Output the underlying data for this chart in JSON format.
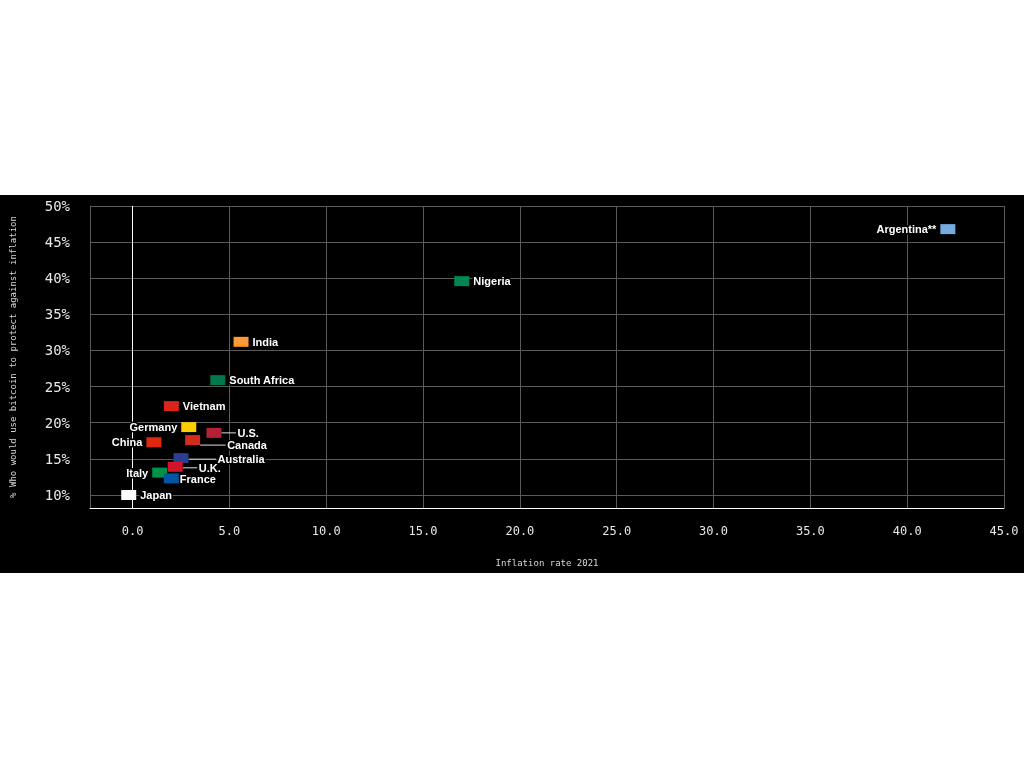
{
  "chart_data": {
    "type": "scatter",
    "xlabel": "Inflation rate 2021",
    "ylabel": "% Who would use bitcoin to protect against inflation",
    "xlim": [
      -2.2,
      45
    ],
    "ylim": [
      8.2,
      50
    ],
    "xticks": [
      {
        "value": 0,
        "label": "0.0"
      },
      {
        "value": 5,
        "label": "5.0"
      },
      {
        "value": 10,
        "label": "10.0"
      },
      {
        "value": 15,
        "label": "15.0"
      },
      {
        "value": 20,
        "label": "20.0"
      },
      {
        "value": 25,
        "label": "25.0"
      },
      {
        "value": 30,
        "label": "30.0"
      },
      {
        "value": 35,
        "label": "35.0"
      },
      {
        "value": 40,
        "label": "40.0"
      },
      {
        "value": 45,
        "label": "45.0"
      }
    ],
    "yticks": [
      {
        "value": 10,
        "label": "10%"
      },
      {
        "value": 15,
        "label": "15%"
      },
      {
        "value": 20,
        "label": "20%"
      },
      {
        "value": 25,
        "label": "25%"
      },
      {
        "value": 30,
        "label": "30%"
      },
      {
        "value": 35,
        "label": "35%"
      },
      {
        "value": 40,
        "label": "40%"
      },
      {
        "value": 45,
        "label": "45%"
      },
      {
        "value": 50,
        "label": "50%"
      }
    ],
    "grid": true,
    "marker": "square",
    "ref_lines": [
      {
        "axis": "x",
        "value": 0,
        "color": "#ffffff"
      }
    ],
    "series": [
      {
        "name": "Argentina**",
        "color": "#74acdf",
        "x": [
          42.1
        ],
        "values": [
          46.8
        ]
      },
      {
        "name": "Nigeria",
        "color": "#008751",
        "x": [
          17.0
        ],
        "values": [
          39.6
        ]
      },
      {
        "name": "India",
        "color": "#ff9933",
        "x": [
          5.6
        ],
        "values": [
          31.2
        ]
      },
      {
        "name": "South Africa",
        "color": "#007a4d",
        "x": [
          4.4
        ],
        "values": [
          25.9
        ]
      },
      {
        "name": "Vietnam",
        "color": "#da251d",
        "x": [
          2.0
        ],
        "values": [
          22.3
        ]
      },
      {
        "name": "Germany",
        "color": "#ffce00",
        "x": [
          2.9
        ],
        "values": [
          19.4
        ]
      },
      {
        "name": "U.S.",
        "color": "#b22234",
        "x": [
          4.2
        ],
        "values": [
          18.6
        ]
      },
      {
        "name": "Canada",
        "color": "#d52b1e",
        "x": [
          3.1
        ],
        "values": [
          17.6
        ]
      },
      {
        "name": "China",
        "color": "#de2910",
        "x": [
          1.1
        ],
        "values": [
          17.3
        ]
      },
      {
        "name": "Australia",
        "color": "#2a3f8f",
        "x": [
          2.5
        ],
        "values": [
          15.1
        ]
      },
      {
        "name": "U.K.",
        "color": "#cf142b",
        "x": [
          2.2
        ],
        "values": [
          13.9
        ]
      },
      {
        "name": "Italy",
        "color": "#009246",
        "x": [
          1.4
        ],
        "values": [
          13.1
        ]
      },
      {
        "name": "France",
        "color": "#0055a4",
        "x": [
          2.0
        ],
        "values": [
          12.3
        ]
      },
      {
        "name": "Japan",
        "color": "#ffffff",
        "x": [
          -0.2
        ],
        "values": [
          10.0
        ]
      }
    ]
  }
}
